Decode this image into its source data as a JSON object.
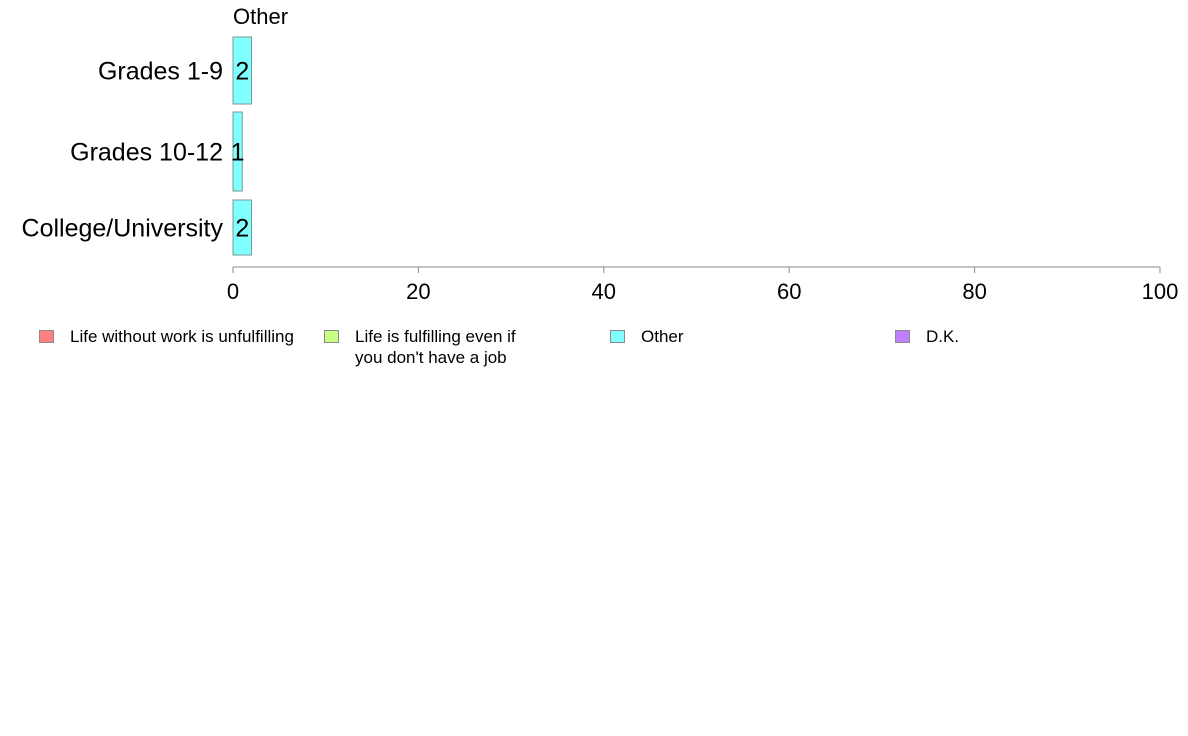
{
  "chart_data": {
    "type": "bar",
    "orientation": "horizontal",
    "title": "Other",
    "categories": [
      "Grades 1-9",
      "Grades 10-12",
      "College/University"
    ],
    "series": [
      {
        "name": "Other",
        "values": [
          2,
          1,
          2
        ],
        "color": "#80ffff"
      }
    ],
    "data_labels": [
      "2",
      "1",
      "2"
    ],
    "xlim": [
      0,
      100
    ],
    "x_ticks": [
      0,
      20,
      40,
      60,
      80,
      100
    ],
    "legend_position": "bottom",
    "grid": false
  },
  "legend": [
    {
      "label": "Life without work is unfulfilling",
      "color": "#ff8080"
    },
    {
      "label": "Life is fulfilling even if\nyou don't have a job",
      "color": "#c8ff80"
    },
    {
      "label": "Other",
      "color": "#80ffff"
    },
    {
      "label": "D.K.",
      "color": "#bf80ff"
    }
  ]
}
